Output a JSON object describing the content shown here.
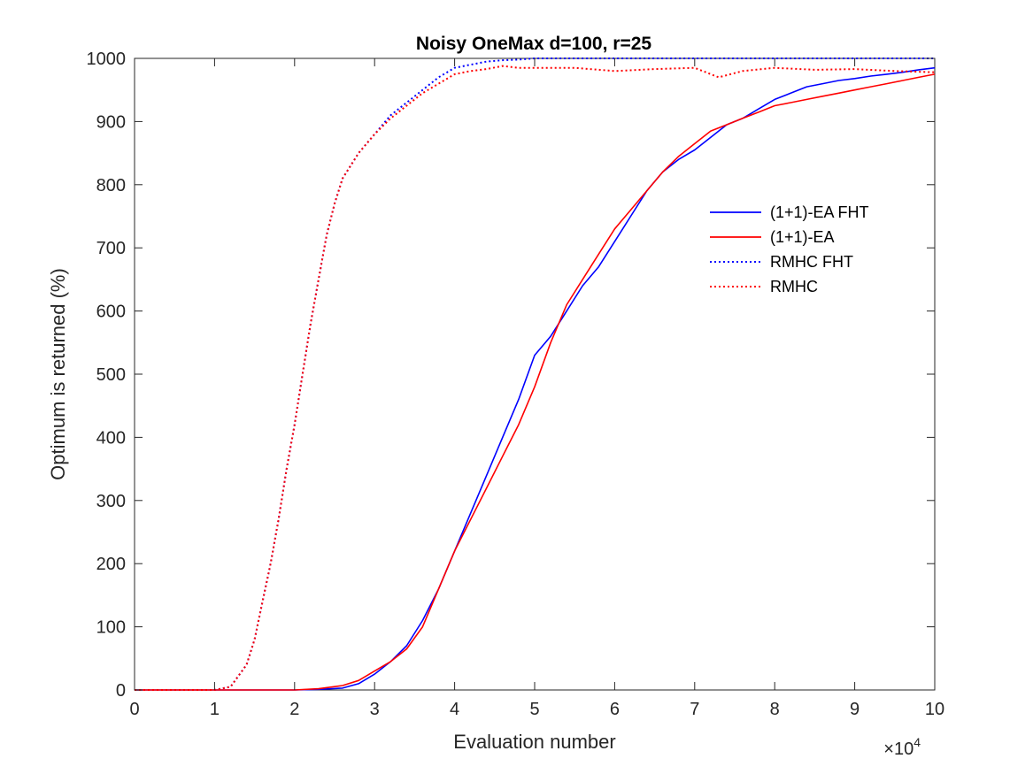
{
  "chart_data": {
    "type": "line",
    "title": "Noisy OneMax d=100, r=25",
    "xlabel": "Evaluation number",
    "ylabel": "Optimum is returned (%)",
    "x_exponent_label": "×10",
    "x_exponent_power": "4",
    "xlim": [
      0,
      10
    ],
    "ylim": [
      0,
      1000
    ],
    "xticks": [
      0,
      1,
      2,
      3,
      4,
      5,
      6,
      7,
      8,
      9,
      10
    ],
    "xtick_labels": [
      "0",
      "1",
      "2",
      "3",
      "4",
      "5",
      "6",
      "7",
      "8",
      "9",
      "10"
    ],
    "yticks": [
      0,
      100,
      200,
      300,
      400,
      500,
      600,
      700,
      800,
      900,
      1000
    ],
    "ytick_labels": [
      "0",
      "100",
      "200",
      "300",
      "400",
      "500",
      "600",
      "700",
      "800",
      "900",
      "1000"
    ],
    "grid": false,
    "legend_position": "right",
    "series": [
      {
        "name": "(1+1)-EA FHT",
        "color": "#0000ff",
        "style": "solid",
        "x": [
          0,
          2.0,
          2.3,
          2.6,
          2.8,
          3.0,
          3.2,
          3.4,
          3.6,
          3.8,
          4.0,
          4.2,
          4.4,
          4.6,
          4.8,
          5.0,
          5.2,
          5.4,
          5.6,
          5.8,
          6.0,
          6.2,
          6.4,
          6.6,
          6.8,
          7.0,
          7.2,
          7.4,
          7.6,
          7.8,
          8.0,
          8.2,
          8.4,
          8.6,
          8.8,
          9.0,
          9.2,
          9.4,
          9.6,
          9.8,
          10.0
        ],
        "y": [
          0,
          0,
          1,
          3,
          10,
          25,
          45,
          70,
          110,
          160,
          220,
          280,
          340,
          400,
          460,
          530,
          560,
          600,
          640,
          670,
          710,
          750,
          790,
          820,
          840,
          855,
          875,
          895,
          905,
          920,
          935,
          945,
          955,
          960,
          965,
          968,
          972,
          975,
          978,
          982,
          985
        ]
      },
      {
        "name": "(1+1)-EA",
        "color": "#ff0000",
        "style": "solid",
        "x": [
          0,
          2.0,
          2.3,
          2.6,
          2.8,
          3.0,
          3.2,
          3.4,
          3.6,
          3.8,
          4.0,
          4.2,
          4.4,
          4.6,
          4.8,
          5.0,
          5.2,
          5.4,
          5.6,
          5.8,
          6.0,
          6.2,
          6.4,
          6.6,
          6.8,
          7.0,
          7.2,
          7.4,
          7.6,
          7.8,
          8.0,
          8.2,
          8.4,
          8.6,
          8.8,
          9.0,
          9.2,
          9.4,
          9.6,
          9.8,
          10.0
        ],
        "y": [
          0,
          0,
          2,
          7,
          15,
          30,
          45,
          65,
          100,
          160,
          220,
          270,
          320,
          370,
          420,
          480,
          550,
          610,
          650,
          690,
          730,
          760,
          790,
          820,
          845,
          865,
          885,
          895,
          905,
          915,
          925,
          930,
          935,
          940,
          945,
          950,
          955,
          960,
          965,
          970,
          975
        ]
      },
      {
        "name": "RMHC FHT",
        "color": "#0000ff",
        "style": "dotted",
        "x": [
          0,
          1.0,
          1.2,
          1.4,
          1.5,
          1.6,
          1.7,
          1.8,
          1.9,
          2.0,
          2.1,
          2.2,
          2.3,
          2.4,
          2.5,
          2.6,
          2.8,
          3.0,
          3.2,
          3.4,
          3.6,
          3.8,
          4.0,
          4.2,
          4.4,
          4.6,
          4.8,
          5.0,
          6.0,
          7.0,
          8.0,
          9.0,
          10.0
        ],
        "y": [
          0,
          0,
          5,
          40,
          80,
          140,
          200,
          270,
          350,
          420,
          500,
          580,
          650,
          720,
          770,
          810,
          850,
          880,
          910,
          930,
          950,
          970,
          985,
          990,
          995,
          997,
          998,
          1000,
          1000,
          1000,
          1000,
          1000,
          1000
        ]
      },
      {
        "name": "RMHC",
        "color": "#ff0000",
        "style": "dotted",
        "x": [
          0,
          1.0,
          1.2,
          1.4,
          1.5,
          1.6,
          1.7,
          1.8,
          1.9,
          2.0,
          2.1,
          2.2,
          2.3,
          2.4,
          2.5,
          2.6,
          2.8,
          3.0,
          3.2,
          3.4,
          3.6,
          3.8,
          4.0,
          4.2,
          4.4,
          4.6,
          4.8,
          5.0,
          5.5,
          6.0,
          6.5,
          7.0,
          7.3,
          7.6,
          8.0,
          8.5,
          9.0,
          9.5,
          10.0
        ],
        "y": [
          0,
          0,
          5,
          40,
          80,
          140,
          200,
          270,
          350,
          420,
          500,
          580,
          650,
          720,
          770,
          810,
          850,
          880,
          905,
          925,
          945,
          960,
          975,
          980,
          983,
          988,
          985,
          985,
          985,
          980,
          983,
          985,
          970,
          980,
          985,
          982,
          983,
          980,
          978
        ]
      }
    ]
  }
}
